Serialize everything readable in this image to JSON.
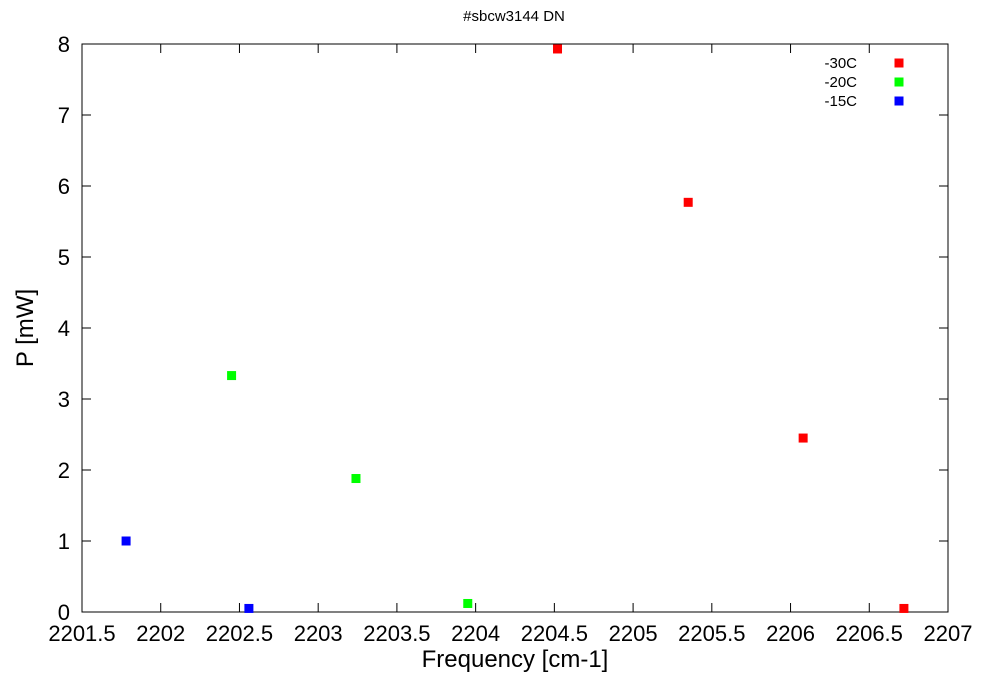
{
  "chart_data": {
    "type": "scatter",
    "title": "#sbcw3144 DN",
    "xlabel": "Frequency [cm-1]",
    "ylabel": "P [mW]",
    "xlim": [
      2201.5,
      2207
    ],
    "ylim": [
      0,
      8
    ],
    "xticks": [
      2201.5,
      2202,
      2202.5,
      2203,
      2203.5,
      2204,
      2204.5,
      2205,
      2205.5,
      2206,
      2206.5,
      2207
    ],
    "xtick_labels": [
      "2201.5",
      "2202",
      "2202.5",
      "2203",
      "2203.5",
      "2204",
      "2204.5",
      "2205",
      "2205.5",
      "2206",
      "2206.5",
      "2207"
    ],
    "yticks": [
      0,
      1,
      2,
      3,
      4,
      5,
      6,
      7,
      8
    ],
    "ytick_labels": [
      "0",
      "1",
      "2",
      "3",
      "4",
      "5",
      "6",
      "7",
      "8"
    ],
    "grid": false,
    "legend_position": "top-right",
    "series": [
      {
        "name": "-30C",
        "color": "#ff0000",
        "x": [
          2204.52,
          2205.35,
          2206.08,
          2206.72
        ],
        "y": [
          7.93,
          5.77,
          2.45,
          0.05
        ]
      },
      {
        "name": "-20C",
        "color": "#00ff00",
        "x": [
          2202.45,
          2203.24,
          2203.95
        ],
        "y": [
          3.33,
          1.88,
          0.12
        ]
      },
      {
        "name": "-15C",
        "color": "#0000ff",
        "x": [
          2201.78,
          2202.56
        ],
        "y": [
          1.0,
          0.05
        ]
      }
    ]
  }
}
